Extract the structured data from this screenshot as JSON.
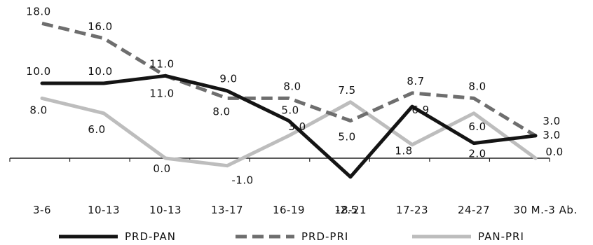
{
  "chart_data": {
    "type": "line",
    "categories": [
      "3-6",
      "10-13",
      "10-13",
      "13-17",
      "16-19",
      "18-21",
      "17-23",
      "24-27",
      "30 M.-3 Ab."
    ],
    "series": [
      {
        "name": "PRD-PAN",
        "values": [
          10.0,
          10.0,
          11.0,
          9.0,
          5.0,
          -2.5,
          6.9,
          2.0,
          3.0
        ],
        "labels": [
          "10.0",
          "10.0",
          "11.0",
          "9.0",
          "5.0",
          "-2.5",
          "6.9",
          "2.0",
          "3.0"
        ],
        "color": "#141414",
        "style": "solid"
      },
      {
        "name": "PRD-PRI",
        "values": [
          18.0,
          16.0,
          11.0,
          8.0,
          8.0,
          5.0,
          8.7,
          8.0,
          3.0
        ],
        "labels": [
          "18.0",
          "16.0",
          "11.0",
          "8.0",
          "8.0",
          "5.0",
          "8.7",
          "8.0",
          "3.0"
        ],
        "color": "#6e6e6e",
        "style": "dashed"
      },
      {
        "name": "PAN-PRI",
        "values": [
          8.0,
          6.0,
          0.0,
          -1.0,
          3.0,
          7.5,
          1.8,
          6.0,
          0.0
        ],
        "labels": [
          "8.0",
          "6.0",
          "0.0",
          "-1.0",
          "3.0",
          "7.5",
          "1.8",
          "6.0",
          "0.0"
        ],
        "color": "#bdbdbd",
        "style": "solid"
      }
    ],
    "title": "",
    "xlabel": "",
    "ylabel": "",
    "ylim": [
      -3,
      19
    ],
    "grid": false,
    "legend_position": "bottom"
  }
}
